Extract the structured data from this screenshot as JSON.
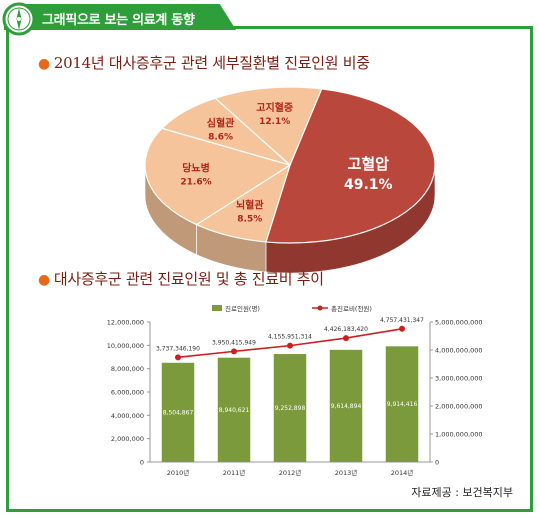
{
  "header": {
    "title": "그래픽으로 보는 의료계 동향",
    "icon": "compass-icon",
    "accent": "#2e9e3a"
  },
  "section1": {
    "title": "2014년 대사증후군 관련 세부질환별 진료인원 비중"
  },
  "section2": {
    "title": "대사증후군 관련 진료인원 및 총 진료비 추이"
  },
  "source": "자료제공 : 보건복지부",
  "chart_data": [
    {
      "type": "pie",
      "title": "2014년 대사증후군 관련 세부질환별 진료인원 비중",
      "slices": [
        {
          "label": "고혈압",
          "value": 49.1,
          "value_label": "49.1%",
          "color": "#b9473c"
        },
        {
          "label": "뇌혈관",
          "value": 8.5,
          "value_label": "8.5%",
          "color": "#f6c49a"
        },
        {
          "label": "당뇨병",
          "value": 21.6,
          "value_label": "21.6%",
          "color": "#f6c49a"
        },
        {
          "label": "심혈관",
          "value": 8.6,
          "value_label": "8.6%",
          "color": "#f6c49a"
        },
        {
          "label": "고지혈증",
          "value": 12.1,
          "value_label": "12.1%",
          "color": "#f6c49a"
        }
      ],
      "style": "3d"
    },
    {
      "type": "bar",
      "title": "대사증후군 관련 진료인원 및 총 진료비 추이",
      "categories": [
        "2010년",
        "2011년",
        "2012년",
        "2013년",
        "2014년"
      ],
      "series": [
        {
          "name": "진료인원(명)",
          "type": "bar",
          "axis": "left",
          "color": "#7a9a3c",
          "values": [
            8504867,
            8940621,
            9252898,
            9614894,
            9914416
          ],
          "value_labels": [
            "8,504,867",
            "8,940,621",
            "9,252,898",
            "9,614,894",
            "9,914,416"
          ]
        },
        {
          "name": "총진료비(천원)",
          "type": "line",
          "axis": "right",
          "color": "#cc1f1f",
          "values": [
            3737346190,
            3950415949,
            4155951314,
            4426183420,
            4757431347
          ],
          "value_labels": [
            "3,737,346,190",
            "3,950,415,949",
            "4,155,951,314",
            "4,426,183,420",
            "4,757,431,347"
          ]
        }
      ],
      "y_left": {
        "min": 0,
        "max": 12000000,
        "ticks": [
          "0",
          "2,000,000",
          "4,000,000",
          "6,000,000",
          "8,000,000",
          "10,000,000",
          "12,000,000"
        ]
      },
      "y_right": {
        "min": 0,
        "max": 5000000000,
        "ticks": [
          "0",
          "1,000,000,000",
          "2,000,000,000",
          "3,000,000,000",
          "4,000,000,000",
          "5,000,000,000"
        ]
      },
      "legend": "top",
      "grid": false
    }
  ]
}
